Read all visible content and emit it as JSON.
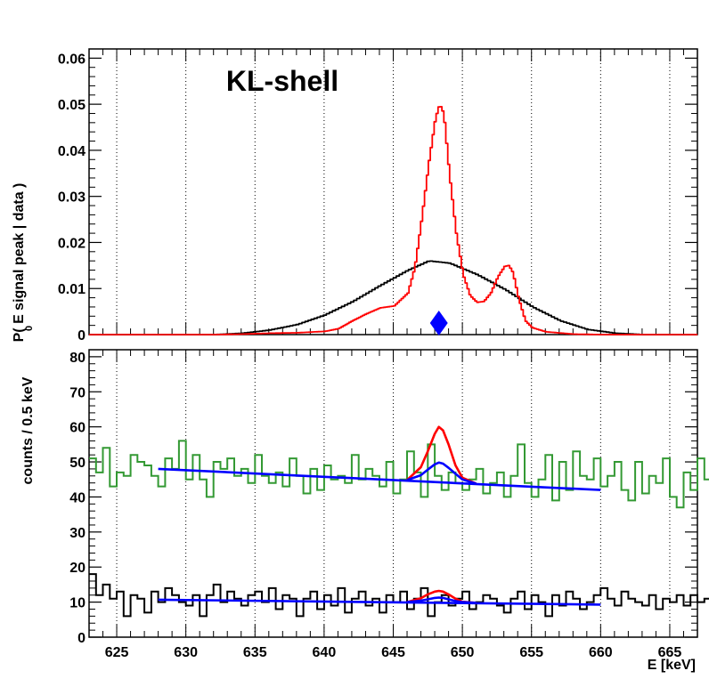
{
  "chart_data": [
    {
      "type": "line",
      "title": "KL-shell",
      "ylabel": "P( E  signal peak | data )",
      "ylabel_subscript": "0",
      "xlim": [
        623,
        667
      ],
      "ylim": [
        0,
        0.062
      ],
      "yticks": [
        0,
        0.01,
        0.02,
        0.03,
        0.04,
        0.05,
        0.06
      ],
      "ytick_labels": [
        "0",
        "0.01",
        "0.02",
        "0.03",
        "0.04",
        "0.05",
        "0.06"
      ],
      "xtick_grid": [
        625,
        630,
        635,
        640,
        645,
        650,
        655,
        660,
        665
      ],
      "series": [
        {
          "name": "prior (black)",
          "color": "#000000",
          "x": [
            623,
            632,
            634,
            636,
            638,
            640,
            642,
            644,
            646,
            647.5,
            649,
            651,
            653,
            655,
            657,
            659,
            661,
            663,
            667
          ],
          "values": [
            0.0,
            0.0,
            0.0003,
            0.001,
            0.0022,
            0.0043,
            0.0072,
            0.0107,
            0.014,
            0.016,
            0.0155,
            0.013,
            0.0098,
            0.006,
            0.003,
            0.0011,
            0.0003,
            0.0,
            0.0
          ]
        },
        {
          "name": "posterior (red)",
          "color": "#ff0000",
          "x": [
            632,
            634,
            636,
            638,
            640,
            641,
            642,
            643,
            644,
            645,
            646,
            646.5,
            647,
            647.5,
            648,
            648.3,
            648.6,
            649,
            649.5,
            650,
            650.5,
            651,
            651.5,
            652,
            652.5,
            653,
            653.3,
            653.6,
            654,
            654.5,
            655,
            656,
            658,
            660
          ],
          "values": [
            0.0,
            0.0001,
            0.0003,
            0.0004,
            0.0007,
            0.0013,
            0.003,
            0.0045,
            0.0058,
            0.0062,
            0.009,
            0.0145,
            0.025,
            0.037,
            0.047,
            0.05,
            0.048,
            0.035,
            0.022,
            0.013,
            0.0085,
            0.007,
            0.0072,
            0.009,
            0.0125,
            0.0148,
            0.015,
            0.0135,
            0.008,
            0.003,
            0.0015,
            0.0006,
            0.0001,
            0.0
          ]
        }
      ],
      "markers": [
        {
          "name": "E0 marker",
          "x": 648.3,
          "y": 0.0025,
          "color": "#0000ff",
          "shape": "diamond"
        }
      ]
    },
    {
      "type": "line",
      "xlabel": "E [keV]",
      "ylabel": "counts / 0.5 keV",
      "xlim": [
        623,
        667
      ],
      "ylim": [
        0,
        82
      ],
      "yticks": [
        0,
        10,
        20,
        30,
        40,
        50,
        60,
        70,
        80
      ],
      "ytick_labels": [
        "0",
        "10",
        "20",
        "30",
        "40",
        "50",
        "60",
        "70",
        "80"
      ],
      "xticks": [
        625,
        630,
        635,
        640,
        645,
        650,
        655,
        660,
        665
      ],
      "xtick_labels": [
        "625",
        "630",
        "635",
        "640",
        "645",
        "650",
        "655",
        "660",
        "665"
      ],
      "histograms": [
        {
          "name": "upper spectrum (green)",
          "color": "#339933",
          "x_start": 623,
          "bin_width": 0.5,
          "values": [
            51,
            47,
            54,
            43,
            47,
            46,
            52,
            50,
            49,
            46,
            43,
            51,
            48,
            56,
            45,
            52,
            45,
            40,
            50,
            48,
            51,
            46,
            48,
            44,
            52,
            46,
            44,
            47,
            43,
            51,
            46,
            41,
            48,
            42,
            49,
            45,
            46,
            44,
            52,
            45,
            48,
            46,
            43,
            50,
            41,
            45,
            53,
            47,
            40,
            55,
            46,
            42,
            47,
            44,
            42,
            45,
            48,
            41,
            44,
            47,
            40,
            46,
            55,
            44,
            40,
            45,
            52,
            39,
            50,
            42,
            53,
            46,
            45,
            51,
            43,
            46,
            50,
            42,
            39,
            50,
            41,
            46,
            44,
            51,
            40,
            37,
            47,
            42,
            51,
            45,
            42,
            50,
            37,
            46,
            45,
            51,
            52,
            49,
            46,
            44,
            42,
            40,
            44,
            48,
            43,
            42,
            41,
            44,
            50,
            56,
            74,
            64,
            50,
            58,
            50,
            45,
            49,
            43,
            55,
            45,
            47,
            51,
            49,
            44,
            52,
            55,
            47,
            43
          ]
        },
        {
          "name": "lower spectrum (black)",
          "color": "#000000",
          "x_start": 623,
          "bin_width": 0.5,
          "values": [
            18,
            12,
            15,
            11,
            13,
            6,
            12,
            11,
            7,
            13,
            10,
            14,
            12,
            10,
            9,
            12,
            6,
            12,
            15,
            10,
            13,
            11,
            9,
            12,
            13,
            10,
            14,
            8,
            12,
            11,
            6,
            11,
            13,
            8,
            12,
            9,
            14,
            7,
            11,
            13,
            9,
            11,
            7,
            12,
            10,
            13,
            8,
            11,
            14,
            6,
            10,
            12,
            9,
            11,
            13,
            8,
            10,
            12,
            11,
            9,
            7,
            11,
            13,
            8,
            12,
            10,
            6,
            12,
            9,
            13,
            11,
            8,
            10,
            12,
            14,
            11,
            9,
            13,
            11,
            10,
            9,
            12,
            8,
            11,
            10,
            12,
            9,
            12,
            10,
            11,
            13,
            9,
            11,
            10,
            9,
            12,
            14,
            11,
            10,
            10,
            10,
            10,
            14,
            9,
            12,
            10,
            15,
            8,
            11,
            9,
            14,
            12,
            8,
            11,
            13,
            10,
            11,
            8,
            12,
            9,
            13,
            10,
            11,
            9,
            12,
            8,
            11,
            10
          ]
        }
      ],
      "series": [
        {
          "name": "background fit upper (blue)",
          "color": "#0000ff",
          "x": [
            628,
            660
          ],
          "values": [
            48,
            42
          ]
        },
        {
          "name": "signal fit upper (red)",
          "color": "#ff0000",
          "x": [
            646,
            647,
            647.5,
            648,
            648.3,
            648.6,
            649,
            649.5,
            650,
            651
          ],
          "values": [
            44.8,
            48.5,
            53,
            58,
            60,
            59,
            55,
            49,
            45.5,
            43.8
          ]
        },
        {
          "name": "posterior fit upper (blue)",
          "color": "#0000ff",
          "x": [
            646,
            647,
            647.5,
            648,
            648.3,
            648.6,
            649,
            649.5,
            650,
            651
          ],
          "values": [
            44.8,
            46.2,
            47.8,
            49.3,
            49.8,
            49.5,
            48.3,
            46.6,
            45,
            43.8
          ]
        },
        {
          "name": "background fit lower (blue)",
          "color": "#0000ff",
          "x": [
            628,
            660
          ],
          "values": [
            10.7,
            9.3
          ]
        },
        {
          "name": "signal fit lower (red)",
          "color": "#ff0000",
          "x": [
            646,
            647,
            647.5,
            648,
            648.3,
            648.6,
            649,
            649.5,
            650,
            651
          ],
          "values": [
            10.0,
            11.1,
            12.2,
            13.0,
            13.2,
            13.0,
            12.2,
            11.0,
            10.1,
            9.8
          ]
        },
        {
          "name": "posterior fit lower (blue)",
          "color": "#0000ff",
          "x": [
            646,
            647,
            647.5,
            648,
            648.3,
            648.6,
            649,
            649.5,
            650,
            651
          ],
          "values": [
            10.0,
            10.4,
            10.8,
            11.2,
            11.3,
            11.2,
            10.8,
            10.3,
            10.0,
            9.8
          ]
        }
      ]
    }
  ]
}
